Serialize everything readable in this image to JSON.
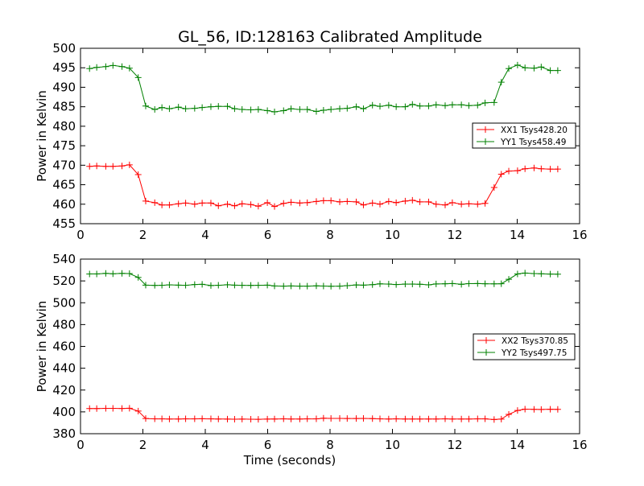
{
  "figure_title": "GL_56, ID:128163 Calibrated Amplitude",
  "colors": {
    "xx": "#ff0000",
    "yy": "#008000",
    "frame": "#000000"
  },
  "chart_data": [
    {
      "type": "line",
      "title": "GL_56, ID:128163 Calibrated Amplitude",
      "xlabel": "",
      "ylabel": "Power in Kelvin",
      "xlim": [
        0,
        16
      ],
      "ylim": [
        455,
        500
      ],
      "xticks": [
        "0",
        "2",
        "4",
        "6",
        "8",
        "10",
        "12",
        "14",
        "16"
      ],
      "yticks": [
        "455",
        "460",
        "465",
        "470",
        "475",
        "480",
        "485",
        "490",
        "495",
        "500"
      ],
      "grid": false,
      "legend_position": "right",
      "x": [
        0.29,
        0.52,
        0.81,
        1.04,
        1.33,
        1.57,
        1.85,
        2.09,
        2.38,
        2.61,
        2.85,
        3.14,
        3.37,
        3.66,
        3.9,
        4.18,
        4.42,
        4.71,
        4.94,
        5.18,
        5.46,
        5.7,
        5.99,
        6.22,
        6.51,
        6.75,
        7.03,
        7.27,
        7.56,
        7.79,
        8.03,
        8.31,
        8.55,
        8.84,
        9.07,
        9.36,
        9.6,
        9.88,
        10.12,
        10.41,
        10.64,
        10.88,
        11.16,
        11.4,
        11.69,
        11.92,
        12.21,
        12.45,
        12.73,
        12.97,
        13.26,
        13.49,
        13.73,
        14.01,
        14.25,
        14.54,
        14.77,
        15.06,
        15.3
      ],
      "series": [
        {
          "name": "XX1 Tsys428.20",
          "color": "#ff0000",
          "values": [
            469.7,
            469.8,
            469.7,
            469.7,
            469.8,
            470.1,
            467.6,
            460.8,
            460.4,
            459.8,
            459.8,
            460.1,
            460.3,
            460.0,
            460.3,
            460.3,
            459.6,
            460.0,
            459.6,
            460.1,
            459.9,
            459.5,
            460.4,
            459.4,
            460.2,
            460.5,
            460.3,
            460.4,
            460.7,
            460.9,
            460.9,
            460.6,
            460.7,
            460.6,
            459.8,
            460.3,
            460.0,
            460.7,
            460.4,
            460.8,
            461.0,
            460.6,
            460.6,
            460.0,
            459.8,
            460.4,
            460.0,
            460.1,
            460.0,
            460.2,
            464.3,
            467.7,
            468.5,
            468.6,
            469.1,
            469.3,
            469.1,
            469.0,
            469.0
          ]
        },
        {
          "name": "YY1 Tsys458.49",
          "color": "#008000",
          "values": [
            494.8,
            495.1,
            495.3,
            495.6,
            495.3,
            494.9,
            492.5,
            485.2,
            484.3,
            484.8,
            484.5,
            484.9,
            484.5,
            484.6,
            484.8,
            485.0,
            485.1,
            485.1,
            484.5,
            484.3,
            484.2,
            484.3,
            484.0,
            483.7,
            484.0,
            484.5,
            484.3,
            484.3,
            483.8,
            484.1,
            484.3,
            484.5,
            484.6,
            485.0,
            484.5,
            485.4,
            485.1,
            485.4,
            485.0,
            485.0,
            485.6,
            485.2,
            485.2,
            485.5,
            485.3,
            485.5,
            485.5,
            485.3,
            485.4,
            486.0,
            486.1,
            491.3,
            494.8,
            495.7,
            495.0,
            494.9,
            495.2,
            494.3,
            494.3
          ]
        }
      ]
    },
    {
      "type": "line",
      "title": "",
      "xlabel": "Time (seconds)",
      "ylabel": "Power in Kelvin",
      "xlim": [
        0,
        16
      ],
      "ylim": [
        380,
        540
      ],
      "xticks": [
        "0",
        "2",
        "4",
        "6",
        "8",
        "10",
        "12",
        "14",
        "16"
      ],
      "yticks": [
        "380",
        "400",
        "420",
        "440",
        "460",
        "480",
        "500",
        "520",
        "540"
      ],
      "grid": false,
      "legend_position": "right",
      "x": [
        0.29,
        0.52,
        0.81,
        1.04,
        1.33,
        1.57,
        1.85,
        2.09,
        2.38,
        2.61,
        2.85,
        3.14,
        3.37,
        3.66,
        3.9,
        4.18,
        4.42,
        4.71,
        4.94,
        5.18,
        5.46,
        5.7,
        5.99,
        6.22,
        6.51,
        6.75,
        7.03,
        7.27,
        7.56,
        7.79,
        8.03,
        8.31,
        8.55,
        8.84,
        9.07,
        9.36,
        9.6,
        9.88,
        10.12,
        10.41,
        10.64,
        10.88,
        11.16,
        11.4,
        11.69,
        11.92,
        12.21,
        12.45,
        12.73,
        12.97,
        13.26,
        13.49,
        13.73,
        14.01,
        14.25,
        14.54,
        14.77,
        15.06,
        15.3
      ],
      "series": [
        {
          "name": "XX2 Tsys370.85",
          "color": "#ff0000",
          "values": [
            403.0,
            403.0,
            403.2,
            403.2,
            403.1,
            403.3,
            400.7,
            393.9,
            393.6,
            393.6,
            393.5,
            393.5,
            393.6,
            393.6,
            393.7,
            393.6,
            393.5,
            393.4,
            393.3,
            393.4,
            393.3,
            393.2,
            393.4,
            393.5,
            393.6,
            393.5,
            393.5,
            393.6,
            393.6,
            394.2,
            394.0,
            394.0,
            393.9,
            393.9,
            394.0,
            393.8,
            393.6,
            393.5,
            393.6,
            393.5,
            393.5,
            393.5,
            393.5,
            393.5,
            393.6,
            393.5,
            393.5,
            393.5,
            393.6,
            393.6,
            393.0,
            393.4,
            397.7,
            401.3,
            402.5,
            402.3,
            402.2,
            402.4,
            402.3
          ]
        },
        {
          "name": "YY2 Tsys497.75",
          "color": "#008000",
          "values": [
            526.4,
            526.4,
            526.9,
            526.5,
            526.9,
            526.7,
            523.2,
            516.1,
            515.9,
            516.0,
            516.4,
            516.1,
            516.0,
            516.7,
            516.9,
            515.8,
            516.0,
            516.5,
            516.1,
            516.0,
            515.9,
            516.0,
            516.1,
            515.4,
            515.2,
            515.4,
            515.2,
            515.2,
            515.5,
            515.3,
            515.1,
            515.2,
            515.7,
            516.3,
            516.1,
            516.6,
            517.3,
            517.1,
            516.7,
            517.1,
            517.1,
            517.0,
            516.4,
            517.2,
            517.4,
            517.6,
            516.9,
            517.5,
            517.6,
            517.4,
            517.3,
            517.4,
            521.5,
            526.4,
            527.2,
            526.7,
            526.5,
            526.3,
            526.2
          ]
        }
      ]
    }
  ]
}
